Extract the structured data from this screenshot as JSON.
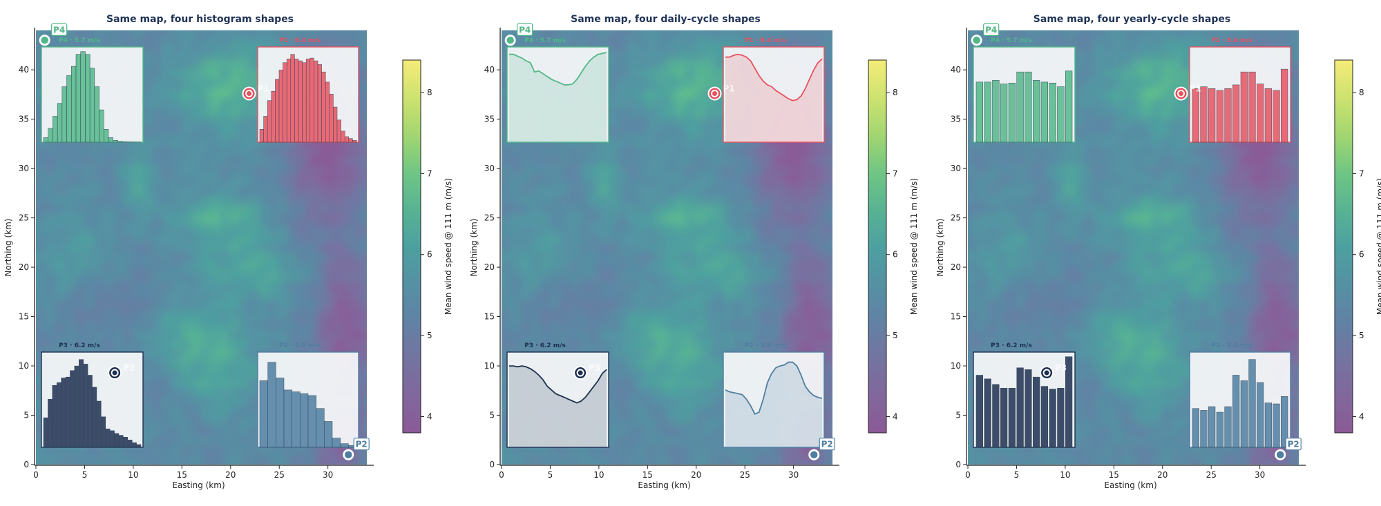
{
  "colors": {
    "P1": "#e8525f",
    "P2": "#4e7ea0",
    "P3": "#1e3050",
    "P4": "#52b788",
    "title": "#1f3355",
    "cmap": [
      "#8b5a96",
      "#7a6fa0",
      "#5b87a5",
      "#4da0a0",
      "#5fc08a",
      "#b4dc6a",
      "#f5ec78"
    ]
  },
  "chart_data": [
    {
      "type": "heatmap",
      "title": "Same map, four histogram shapes",
      "xlabel": "Easting (km)",
      "ylabel": "Northing (km)",
      "xlim": [
        0,
        34
      ],
      "ylim": [
        0,
        44
      ],
      "xticks": [
        0,
        5,
        10,
        15,
        20,
        25,
        30
      ],
      "yticks": [
        0,
        5,
        10,
        15,
        20,
        25,
        30,
        35,
        40
      ],
      "colorbar": {
        "label": "Mean wind speed @ 111 m (m/s)",
        "min": 3.8,
        "max": 8.4,
        "ticks": [
          4,
          5,
          6,
          7,
          8
        ]
      },
      "points": [
        {
          "name": "P1",
          "x": 21.9,
          "y": 37.6,
          "mean": "P1 · 8.4 m/s"
        },
        {
          "name": "P2",
          "x": 32.1,
          "y": 1.0,
          "mean": "P2 · 3.8 m/s"
        },
        {
          "name": "P3",
          "x": 8.1,
          "y": 9.3,
          "mean": "P3 · 6.2 m/s"
        },
        {
          "name": "P4",
          "x": 0.9,
          "y": 43.0,
          "mean": "P4 · 5.7 m/s"
        }
      ],
      "insets": {
        "kind": "histogram",
        "P4": [
          0.05,
          0.15,
          0.28,
          0.42,
          0.6,
          0.72,
          0.82,
          0.95,
          0.98,
          0.95,
          0.8,
          0.6,
          0.35,
          0.14,
          0.05,
          0.02,
          0.01,
          0.005,
          0.003,
          0.002,
          0.001
        ],
        "P1": [
          0.14,
          0.28,
          0.45,
          0.55,
          0.68,
          0.78,
          0.86,
          0.9,
          0.95,
          0.9,
          0.88,
          0.86,
          0.9,
          0.91,
          0.88,
          0.84,
          0.76,
          0.65,
          0.52,
          0.38,
          0.24,
          0.12,
          0.06,
          0.04,
          0.02
        ],
        "P3": [
          0.32,
          0.52,
          0.67,
          0.7,
          0.75,
          0.76,
          0.83,
          0.88,
          0.95,
          0.9,
          0.78,
          0.65,
          0.5,
          0.33,
          0.2,
          0.18,
          0.15,
          0.13,
          0.11,
          0.08,
          0.05,
          0.03
        ],
        "P2": [
          0.72,
          0.92,
          0.75,
          0.62,
          0.6,
          0.58,
          0.56,
          0.42,
          0.28,
          0.1,
          0.04,
          0.02
        ]
      }
    },
    {
      "type": "heatmap",
      "title": "Same map, four daily-cycle shapes",
      "xlabel": "Easting (km)",
      "ylabel": "Northing (km)",
      "xlim": [
        0,
        34
      ],
      "ylim": [
        0,
        44
      ],
      "xticks": [
        0,
        5,
        10,
        15,
        20,
        25,
        30
      ],
      "yticks": [
        0,
        5,
        10,
        15,
        20,
        25,
        30,
        35,
        40
      ],
      "colorbar": {
        "label": "Mean wind speed @ 111 m (m/s)",
        "min": 3.8,
        "max": 8.4,
        "ticks": [
          4,
          5,
          6,
          7,
          8
        ]
      },
      "points": [
        {
          "name": "P1",
          "x": 21.9,
          "y": 37.6,
          "mean": "P1 · 8.4 m/s"
        },
        {
          "name": "P2",
          "x": 32.1,
          "y": 1.0,
          "mean": "P2 · 3.8 m/s"
        },
        {
          "name": "P3",
          "x": 8.1,
          "y": 9.3,
          "mean": "P3 · 6.2 m/s"
        },
        {
          "name": "P4",
          "x": 0.9,
          "y": 43.0,
          "mean": "P4 · 5.7 m/s"
        }
      ],
      "insets": {
        "kind": "daily-cycle",
        "hours": [
          0,
          1,
          2,
          3,
          4,
          5,
          6,
          7,
          8,
          9,
          10,
          11,
          12,
          13,
          14,
          15,
          16,
          17,
          18,
          19,
          20,
          21,
          22,
          23
        ],
        "P4": [
          0.95,
          0.95,
          0.93,
          0.91,
          0.88,
          0.86,
          0.76,
          0.77,
          0.74,
          0.71,
          0.68,
          0.66,
          0.64,
          0.62,
          0.62,
          0.63,
          0.68,
          0.75,
          0.82,
          0.88,
          0.92,
          0.95,
          0.96,
          0.97
        ],
        "P1": [
          0.92,
          0.92,
          0.94,
          0.95,
          0.94,
          0.92,
          0.88,
          0.8,
          0.72,
          0.66,
          0.62,
          0.6,
          0.56,
          0.53,
          0.5,
          0.47,
          0.45,
          0.46,
          0.5,
          0.58,
          0.68,
          0.78,
          0.86,
          0.9
        ],
        "P3": [
          0.88,
          0.88,
          0.87,
          0.88,
          0.87,
          0.85,
          0.82,
          0.78,
          0.73,
          0.66,
          0.62,
          0.58,
          0.56,
          0.54,
          0.52,
          0.5,
          0.48,
          0.5,
          0.54,
          0.6,
          0.66,
          0.72,
          0.8,
          0.84
        ],
        "P2": [
          0.62,
          0.6,
          0.59,
          0.58,
          0.57,
          0.52,
          0.45,
          0.36,
          0.38,
          0.52,
          0.7,
          0.8,
          0.86,
          0.88,
          0.89,
          0.92,
          0.92,
          0.88,
          0.78,
          0.66,
          0.6,
          0.56,
          0.54,
          0.53
        ]
      }
    },
    {
      "type": "heatmap",
      "title": "Same map, four yearly-cycle shapes",
      "xlabel": "Easting (km)",
      "ylabel": "Northing (km)",
      "xlim": [
        0,
        34
      ],
      "ylim": [
        0,
        44
      ],
      "xticks": [
        0,
        5,
        10,
        15,
        20,
        25,
        30
      ],
      "yticks": [
        0,
        5,
        10,
        15,
        20,
        25,
        30,
        35,
        40
      ],
      "colorbar": {
        "label": "Mean wind speed @ 111 m (m/s)",
        "min": 3.8,
        "max": 8.4,
        "ticks": [
          4,
          5,
          6,
          7,
          8
        ]
      },
      "points": [
        {
          "name": "P1",
          "x": 21.9,
          "y": 37.6,
          "mean": "P1 · 8.4 m/s"
        },
        {
          "name": "P2",
          "x": 32.1,
          "y": 1.0,
          "mean": "P2 · 3.8 m/s"
        },
        {
          "name": "P3",
          "x": 8.1,
          "y": 9.3,
          "mean": "P3 · 6.2 m/s"
        },
        {
          "name": "P4",
          "x": 0.9,
          "y": 43.0,
          "mean": "P4 · 5.7 m/s"
        }
      ],
      "insets": {
        "kind": "yearly-cycle",
        "months": [
          1,
          2,
          3,
          4,
          5,
          6,
          7,
          8,
          9,
          10,
          11,
          12
        ],
        "P4": [
          0.65,
          0.65,
          0.67,
          0.63,
          0.64,
          0.76,
          0.76,
          0.67,
          0.65,
          0.64,
          0.6,
          0.77
        ],
        "P1": [
          0.58,
          0.6,
          0.58,
          0.56,
          0.58,
          0.62,
          0.76,
          0.76,
          0.63,
          0.58,
          0.56,
          0.79
        ],
        "P3": [
          0.78,
          0.74,
          0.68,
          0.64,
          0.64,
          0.86,
          0.84,
          0.76,
          0.66,
          0.63,
          0.64,
          0.98
        ],
        "P2": [
          0.42,
          0.4,
          0.44,
          0.38,
          0.44,
          0.78,
          0.72,
          0.95,
          0.7,
          0.48,
          0.47,
          0.55
        ]
      }
    }
  ]
}
